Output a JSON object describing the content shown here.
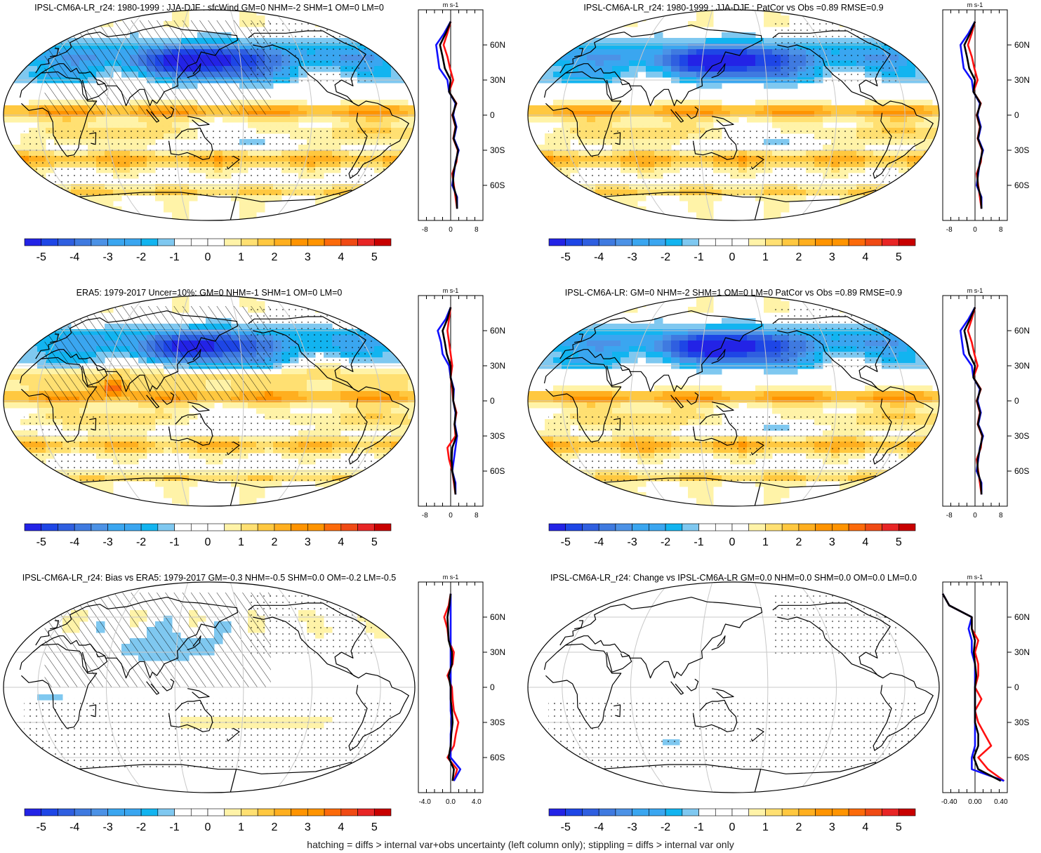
{
  "footnote": "hatching = diffs > internal var+obs uncertainty (left column only); stippling = diffs > internal var only",
  "colors": {
    "palette": [
      "#2323e6",
      "#1e46e6",
      "#2f5fe0",
      "#3f7ae0",
      "#4c92e6",
      "#3aa6f0",
      "#12b4f0",
      "#7fc8f0",
      "#ffffff",
      "#ffffff",
      "#fff3a8",
      "#ffe072",
      "#ffc840",
      "#ffaf1f",
      "#ff9400",
      "#fc6a0a",
      "#f04a14",
      "#e82525",
      "#c80000"
    ],
    "model_profile": "#ff1010",
    "obs_profile": "#1010ff",
    "ensemble_profile": "#000000",
    "land_outline": "#000000",
    "graticule": "#c8c8c8"
  },
  "colorbar_labels": [
    "-5",
    "-4",
    "-3",
    "-2",
    "-1",
    "0",
    "1",
    "2",
    "3",
    "4",
    "5"
  ],
  "profile_unit": "m s-1",
  "lat_labels": [
    "60N",
    "30N",
    "0",
    "30S",
    "60S"
  ],
  "panels": [
    {
      "title": "IPSL-CM6A-LR_r24: 1980-1999 : JJA-DJF : sfcWind GM=0 NHM=-2 SHM=1 OM=0 LM=0",
      "hatching": true,
      "stippling": true,
      "field": "base",
      "profile_x_ticks": [
        "-8",
        "0",
        "8"
      ],
      "profile_xlim": [
        -10,
        10
      ]
    },
    {
      "title": "IPSL-CM6A-LR_r24: 1980-1999 : JJA-DJF : PatCor vs Obs =0.89 RMSE=0.9",
      "hatching": false,
      "stippling": true,
      "field": "base",
      "profile_x_ticks": [
        "-8",
        "0",
        "8"
      ],
      "profile_xlim": [
        -10,
        10
      ]
    },
    {
      "title": "ERA5: 1979-2017 Uncer=10%: GM=0 NHM=-1 SHM=1 OM=0 LM=0",
      "hatching": true,
      "stippling": true,
      "field": "era5",
      "profile_x_ticks": [
        "-8",
        "0",
        "8"
      ],
      "profile_xlim": [
        -10,
        10
      ]
    },
    {
      "title": "IPSL-CM6A-LR: GM=0 NHM=-2 SHM=1 OM=0 LM=0 PatCor vs Obs =0.89 RMSE=0.9",
      "hatching": false,
      "stippling": true,
      "field": "base",
      "profile_x_ticks": [
        "-8",
        "0",
        "8"
      ],
      "profile_xlim": [
        -10,
        10
      ]
    },
    {
      "title": "IPSL-CM6A-LR_r24: Bias vs ERA5: 1979-2017 GM=-0.3 NHM=-0.5 SHM=0.0 OM=-0.2 LM=-0.5",
      "hatching": true,
      "stippling": true,
      "field": "bias",
      "profile_x_ticks": [
        "-4.0",
        "0.0",
        "4.0"
      ],
      "profile_xlim": [
        -5,
        5
      ]
    },
    {
      "title": "IPSL-CM6A-LR_r24: Change vs IPSL-CM6A-LR GM=0.0 NHM=0.0 SHM=0.0 OM=0.0 LM=0.0",
      "hatching": false,
      "stippling": true,
      "field": "change",
      "profile_x_ticks": [
        "-0.40",
        "0.00",
        "0.40"
      ],
      "profile_xlim": [
        -0.5,
        0.5
      ]
    }
  ],
  "chart_data": [
    {
      "type": "heatmap",
      "projection": "Robinson (Pacific-centred)",
      "title": "IPSL-CM6A-LR_r24: 1980-1999 : JJA-DJF : sfcWind GM=0 NHM=-2 SHM=1 OM=0 LM=0",
      "colorbar": {
        "ticks": [
          -5,
          -4,
          -3,
          -2,
          -1,
          0,
          1,
          2,
          3,
          4,
          5
        ],
        "range": [
          -5.5,
          5.5
        ]
      },
      "zonal_profile": {
        "y": [
          -80,
          -70,
          -60,
          -50,
          -40,
          -30,
          -20,
          -10,
          0,
          10,
          20,
          30,
          40,
          50,
          60,
          70,
          80
        ],
        "series": [
          {
            "values": [
              2,
              1.5,
              1,
              0.5,
              1.8,
              2.2,
              0.8,
              1.5,
              0.5,
              1.8,
              -0.5,
              0.8,
              -0.2,
              -1,
              -2.2,
              -1,
              0
            ]
          },
          {
            "values": [
              2,
              2,
              0.5,
              1,
              1.5,
              2.5,
              1,
              1.8,
              0.8,
              1.5,
              -0.5,
              -1,
              -3.5,
              -4,
              -4.5,
              -2,
              0
            ]
          },
          {
            "values": [
              2,
              1.8,
              0.8,
              0.8,
              1.6,
              2.3,
              0.9,
              1.6,
              0.6,
              1.7,
              -0.5,
              0,
              -1.8,
              -2.5,
              -3.3,
              -1.5,
              0
            ]
          }
        ]
      }
    },
    {
      "type": "heatmap",
      "projection": "Robinson (Pacific-centred)",
      "title": "IPSL-CM6A-LR_r24: 1980-1999 : JJA-DJF : PatCor vs Obs =0.89 RMSE=0.9",
      "colorbar": {
        "ticks": [
          -5,
          -4,
          -3,
          -2,
          -1,
          0,
          1,
          2,
          3,
          4,
          5
        ],
        "range": [
          -5.5,
          5.5
        ]
      },
      "zonal_profile": {
        "y": [
          -80,
          -70,
          -60,
          -50,
          -40,
          -30,
          -20,
          -10,
          0,
          10,
          20,
          30,
          40,
          50,
          60,
          70,
          80
        ],
        "series": [
          {
            "values": [
              2,
              1.5,
              1,
              0.5,
              1.8,
              2.2,
              0.8,
              1.5,
              0.5,
              1.8,
              -0.5,
              0.8,
              -0.2,
              -1,
              -2.2,
              -1,
              0
            ]
          },
          {
            "values": [
              2,
              2,
              0.5,
              1,
              1.5,
              2.5,
              1,
              1.8,
              0.8,
              1.5,
              -0.5,
              -1,
              -3.5,
              -4,
              -4.5,
              -2,
              0
            ]
          },
          {
            "values": [
              2,
              1.8,
              0.8,
              0.8,
              1.6,
              2.3,
              0.9,
              1.6,
              0.6,
              1.7,
              -0.5,
              0,
              -1.8,
              -2.5,
              -3.3,
              -1.5,
              0
            ]
          }
        ]
      }
    },
    {
      "type": "heatmap",
      "projection": "Robinson (Pacific-centred)",
      "title": "ERA5: 1979-2017 Uncer=10%: GM=0 NHM=-1 SHM=1 OM=0 LM=0",
      "colorbar": {
        "ticks": [
          -5,
          -4,
          -3,
          -2,
          -1,
          0,
          1,
          2,
          3,
          4,
          5
        ],
        "range": [
          -5.5,
          5.5
        ]
      },
      "zonal_profile": {
        "y": [
          -80,
          -70,
          -60,
          -50,
          -40,
          -30,
          -20,
          -10,
          0,
          10,
          20,
          30,
          40,
          50,
          60,
          70,
          80
        ],
        "series": [
          {
            "values": [
              1.5,
              1,
              0.5,
              -0.5,
              -1,
              1.5,
              1.2,
              1.8,
              0.8,
              0.5,
              0,
              0.5,
              0,
              -0.5,
              -1,
              -0.5,
              0
            ]
          },
          {
            "values": [
              1.5,
              1.5,
              0.5,
              1,
              1.5,
              2,
              1.3,
              1.5,
              0.8,
              1,
              0,
              -0.5,
              -2.5,
              -3,
              -4,
              -1.5,
              0
            ]
          },
          {
            "values": [
              1.5,
              1.2,
              0.5,
              0.3,
              0.5,
              1.8,
              1.2,
              1.6,
              0.8,
              0.8,
              0,
              0,
              -1.2,
              -1.8,
              -2.5,
              -1,
              0
            ]
          }
        ]
      }
    },
    {
      "type": "heatmap",
      "projection": "Robinson (Pacific-centred)",
      "title": "IPSL-CM6A-LR: GM=0 NHM=-2 SHM=1 OM=0 LM=0 PatCor vs Obs =0.89 RMSE=0.9",
      "colorbar": {
        "ticks": [
          -5,
          -4,
          -3,
          -2,
          -1,
          0,
          1,
          2,
          3,
          4,
          5
        ],
        "range": [
          -5.5,
          5.5
        ]
      },
      "zonal_profile": {
        "y": [
          -80,
          -70,
          -60,
          -50,
          -40,
          -30,
          -20,
          -10,
          0,
          10,
          20,
          30,
          40,
          50,
          60,
          70,
          80
        ],
        "series": [
          {
            "values": [
              2,
              1.5,
              1,
              0.5,
              1.8,
              2.2,
              0.8,
              1.5,
              0.5,
              1.8,
              -0.5,
              0.8,
              -0.2,
              -1,
              -2.2,
              -1,
              0
            ]
          },
          {
            "values": [
              2,
              2,
              0.5,
              1,
              1.5,
              2.5,
              1,
              1.8,
              0.8,
              1.5,
              -0.5,
              -1,
              -3.5,
              -4,
              -4.5,
              -2,
              0
            ]
          },
          {
            "values": [
              2,
              1.8,
              0.8,
              0.8,
              1.6,
              2.3,
              0.9,
              1.6,
              0.6,
              1.7,
              -0.5,
              0,
              -1.8,
              -2.5,
              -3.3,
              -1.5,
              0
            ]
          }
        ]
      }
    },
    {
      "type": "heatmap",
      "projection": "Robinson (Pacific-centred)",
      "title": "IPSL-CM6A-LR_r24: Bias vs ERA5: 1979-2017 GM=-0.3 NHM=-0.5 SHM=0.0 OM=-0.2 LM=-0.5",
      "colorbar": {
        "ticks": [
          -5,
          -4,
          -3,
          -2,
          -1,
          0,
          1,
          2,
          3,
          4,
          5
        ],
        "range": [
          -5.5,
          5.5
        ]
      },
      "zonal_profile": {
        "y": [
          -80,
          -70,
          -60,
          -50,
          -40,
          -30,
          -20,
          -10,
          0,
          10,
          20,
          30,
          40,
          50,
          60,
          70,
          80
        ],
        "series": [
          {
            "values": [
              0.5,
              1,
              -0.5,
              0.5,
              0.8,
              1.2,
              0.5,
              0.3,
              0.2,
              -0.5,
              0.3,
              0.5,
              -0.3,
              -0.5,
              -1,
              -0.3,
              0
            ]
          },
          {
            "values": [
              0.5,
              1.5,
              0,
              0,
              0,
              0.2,
              0,
              0,
              0,
              0,
              0,
              0,
              0,
              0,
              0,
              0,
              0
            ]
          },
          {
            "values": [
              0.3,
              0.5,
              -0.3,
              0,
              0.1,
              0.3,
              0.2,
              0,
              0,
              -0.3,
              0.2,
              0.2,
              -0.3,
              -0.4,
              -0.5,
              -0.2,
              0
            ]
          }
        ]
      }
    },
    {
      "type": "heatmap",
      "projection": "Robinson (Pacific-centred)",
      "title": "IPSL-CM6A-LR_r24: Change vs IPSL-CM6A-LR GM=0.0 NHM=0.0 SHM=0.0 OM=0.0 LM=0.0",
      "colorbar": {
        "ticks": [
          -5,
          -4,
          -3,
          -2,
          -1,
          0,
          1,
          2,
          3,
          4,
          5
        ],
        "range": [
          -5.5,
          5.5
        ]
      },
      "zonal_profile": {
        "y": [
          -80,
          -70,
          -60,
          -50,
          -40,
          -30,
          -20,
          -10,
          0,
          10,
          20,
          30,
          40,
          50,
          60,
          70,
          80
        ],
        "series": [
          {
            "values": [
              0.45,
              0.2,
              0.05,
              0.25,
              0.15,
              0.05,
              0,
              0.1,
              0,
              0.05,
              0.05,
              0,
              0.05,
              -0.05,
              -0.05,
              -0.4,
              -0.5
            ]
          },
          {
            "values": [
              0.45,
              -0.05,
              -0.05,
              0,
              0,
              0,
              0,
              0,
              0,
              0,
              0,
              -0.05,
              -0.05,
              -0.1,
              -0.05,
              -0.4,
              -0.5
            ]
          },
          {
            "values": [
              0.4,
              0.05,
              -0.02,
              0.05,
              0.05,
              0,
              0,
              0,
              0,
              0.02,
              0,
              -0.02,
              0,
              -0.05,
              -0.05,
              -0.4,
              -0.5
            ]
          }
        ]
      }
    }
  ]
}
